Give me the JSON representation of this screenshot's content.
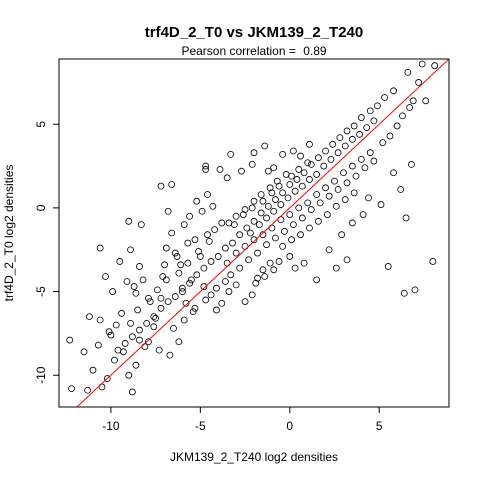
{
  "chart_data": {
    "type": "scatter",
    "title": "trf4D_2_T0 vs JKM139_2_T240",
    "subtitle_label": "Pearson correlation = ",
    "subtitle_value": "0.89",
    "xlabel": "JKM139_2_T240 log2 densities",
    "ylabel": "trf4D_2_T0 log2 densities",
    "xlim": [
      -12.9,
      8.9
    ],
    "ylim": [
      -11.9,
      8.9
    ],
    "xticks": [
      -10,
      -5,
      0,
      5
    ],
    "yticks": [
      -10,
      -5,
      0,
      5
    ],
    "marker": "open-circle",
    "point_color": "#000000",
    "fit_line": {
      "color": "#ff0000",
      "intercept": 0.0,
      "slope": 1.0
    },
    "grid": false,
    "points": [
      [
        -12.2,
        -10.8
      ],
      [
        -11.3,
        -10.9
      ],
      [
        -12.3,
        -7.9
      ],
      [
        -11.5,
        -8.6
      ],
      [
        -11.0,
        -9.7
      ],
      [
        -10.7,
        -8.2
      ],
      [
        -10.5,
        -10.7
      ],
      [
        -10.2,
        -10.2
      ],
      [
        -11.2,
        -6.5
      ],
      [
        -10.6,
        -6.7
      ],
      [
        -10.1,
        -7.4
      ],
      [
        -9.8,
        -9.1
      ],
      [
        -9.6,
        -8.5
      ],
      [
        -9.3,
        -8.6
      ],
      [
        -9.0,
        -10.0
      ],
      [
        -8.8,
        -11.0
      ],
      [
        -8.6,
        -9.4
      ],
      [
        -9.9,
        -5.0
      ],
      [
        -10.3,
        -4.1
      ],
      [
        -9.1,
        -4.4
      ],
      [
        -8.9,
        -6.9
      ],
      [
        -8.4,
        -7.9
      ],
      [
        -8.1,
        -8.3
      ],
      [
        -7.9,
        -8.0
      ],
      [
        -7.6,
        -7.1
      ],
      [
        -7.3,
        -8.5
      ],
      [
        -6.7,
        -8.8
      ],
      [
        -6.2,
        -8.0
      ],
      [
        -8.7,
        -4.7
      ],
      [
        -8.4,
        -3.5
      ],
      [
        -8.9,
        -2.5
      ],
      [
        -9.5,
        -3.2
      ],
      [
        -10.6,
        -2.4
      ],
      [
        -9.0,
        -0.8
      ],
      [
        -8.3,
        -1.0
      ],
      [
        -8.5,
        -6.1
      ],
      [
        -7.8,
        -5.6
      ],
      [
        -7.5,
        -6.6
      ],
      [
        -7.2,
        -5.4
      ],
      [
        -7.1,
        -4.1
      ],
      [
        -6.9,
        -2.4
      ],
      [
        -6.6,
        -1.5
      ],
      [
        -6.8,
        -0.2
      ],
      [
        -6.4,
        -2.7
      ],
      [
        -6.1,
        -3.4
      ],
      [
        -5.7,
        -2.1
      ],
      [
        -5.5,
        -4.3
      ],
      [
        -5.4,
        -6.2
      ],
      [
        -5.8,
        -5.7
      ],
      [
        -6.0,
        -5.0
      ],
      [
        -5.9,
        -1.0
      ],
      [
        -5.6,
        -0.5
      ],
      [
        -5.2,
        0.4
      ],
      [
        -4.9,
        -0.2
      ],
      [
        -4.6,
        0.8
      ],
      [
        -4.3,
        0.1
      ],
      [
        -5.0,
        -2.9
      ],
      [
        -4.8,
        -4.7
      ],
      [
        -4.4,
        -5.2
      ],
      [
        -4.1,
        -6.1
      ],
      [
        -3.8,
        -5.7
      ],
      [
        -3.4,
        -5.0
      ],
      [
        -3.0,
        -4.6
      ],
      [
        -7.2,
        1.3
      ],
      [
        -6.6,
        1.4
      ],
      [
        -4.7,
        2.5
      ],
      [
        -3.3,
        3.2
      ],
      [
        -4.7,
        2.3
      ],
      [
        -3.9,
        2.3
      ],
      [
        -3.5,
        1.8
      ],
      [
        -2.7,
        2.2
      ],
      [
        -2.1,
        2.6
      ],
      [
        -1.2,
        2.2
      ],
      [
        -0.9,
        2.4
      ],
      [
        -0.4,
        3.2
      ],
      [
        0.2,
        3.4
      ],
      [
        0.6,
        3.1
      ],
      [
        1.1,
        3.8
      ],
      [
        -1.4,
        3.7
      ],
      [
        -2.0,
        3.3
      ],
      [
        -2.5,
        -5.6
      ],
      [
        -2.1,
        -5.2
      ],
      [
        -1.8,
        -4.2
      ],
      [
        -1.5,
        -3.7
      ],
      [
        -1.1,
        -3.3
      ],
      [
        -0.6,
        -3.2
      ],
      [
        0.0,
        -2.9
      ],
      [
        0.3,
        -3.6
      ],
      [
        0.8,
        -3.3
      ],
      [
        1.5,
        -4.3
      ],
      [
        2.2,
        -2.5
      ],
      [
        2.6,
        -3.6
      ],
      [
        3.2,
        -3.1
      ],
      [
        2.9,
        -1.6
      ],
      [
        3.5,
        -0.9
      ],
      [
        4.1,
        -0.4
      ],
      [
        5.5,
        -3.5
      ],
      [
        7.0,
        -4.9
      ],
      [
        6.4,
        -5.1
      ],
      [
        8.0,
        -3.2
      ],
      [
        6.5,
        -0.6
      ],
      [
        6.2,
        1.1
      ],
      [
        6.8,
        2.6
      ],
      [
        4.4,
        0.6
      ],
      [
        5.1,
        0.2
      ],
      [
        5.8,
        2.1
      ],
      [
        6.9,
        6.4
      ],
      [
        7.2,
        7.5
      ],
      [
        7.6,
        6.4
      ],
      [
        8.1,
        8.5
      ],
      [
        7.4,
        8.6
      ],
      [
        6.6,
        8.1
      ],
      [
        5.8,
        7.0
      ],
      [
        5.3,
        6.6
      ],
      [
        4.9,
        6.1
      ],
      [
        4.5,
        5.8
      ],
      [
        4.0,
        5.4
      ],
      [
        3.6,
        4.9
      ],
      [
        3.2,
        4.6
      ],
      [
        2.8,
        4.2
      ],
      [
        2.4,
        3.8
      ],
      [
        2.0,
        3.4
      ],
      [
        1.6,
        3.0
      ],
      [
        1.2,
        2.6
      ],
      [
        0.8,
        2.1
      ],
      [
        0.4,
        1.7
      ],
      [
        0.0,
        1.4
      ],
      [
        -0.4,
        0.9
      ],
      [
        -0.8,
        0.5
      ],
      [
        -1.2,
        0.1
      ],
      [
        -1.6,
        -0.3
      ],
      [
        -2.0,
        -0.8
      ],
      [
        -2.4,
        -1.2
      ],
      [
        -2.8,
        -1.6
      ],
      [
        -3.2,
        -2.1
      ],
      [
        -3.6,
        -2.4
      ],
      [
        -4.0,
        -2.9
      ],
      [
        -4.4,
        -3.2
      ],
      [
        -4.8,
        -3.6
      ],
      [
        -5.2,
        -4.0
      ],
      [
        -5.6,
        -4.5
      ],
      [
        -6.0,
        -4.8
      ],
      [
        -6.4,
        -5.3
      ],
      [
        -6.8,
        -5.6
      ],
      [
        -7.2,
        -6.0
      ],
      [
        -7.6,
        -6.5
      ],
      [
        -8.0,
        -6.9
      ],
      [
        -8.4,
        -7.3
      ],
      [
        -8.8,
        -7.7
      ],
      [
        -9.2,
        -8.1
      ],
      [
        -2.2,
        -1.5
      ],
      [
        -1.7,
        -1.0
      ],
      [
        -1.3,
        -0.6
      ],
      [
        -0.9,
        -0.2
      ],
      [
        -0.5,
        0.2
      ],
      [
        -0.1,
        0.6
      ],
      [
        0.3,
        1.0
      ],
      [
        0.7,
        1.3
      ],
      [
        1.1,
        1.7
      ],
      [
        1.5,
        2.0
      ],
      [
        1.9,
        2.5
      ],
      [
        2.3,
        2.9
      ],
      [
        2.7,
        3.3
      ],
      [
        3.1,
        3.7
      ],
      [
        3.5,
        4.1
      ],
      [
        3.9,
        4.4
      ],
      [
        4.3,
        4.8
      ],
      [
        4.7,
        5.2
      ],
      [
        -3.1,
        -1.0
      ],
      [
        -2.6,
        -0.4
      ],
      [
        -2.1,
        0.0
      ],
      [
        -1.5,
        0.4
      ],
      [
        -1.0,
        0.9
      ],
      [
        -0.6,
        1.3
      ],
      [
        0.1,
        1.9
      ],
      [
        0.5,
        2.3
      ],
      [
        1.0,
        2.7
      ],
      [
        -3.5,
        -3.3
      ],
      [
        -3.0,
        -2.7
      ],
      [
        -2.5,
        -2.3
      ],
      [
        -2.0,
        -1.9
      ],
      [
        -1.5,
        -1.6
      ],
      [
        -1.0,
        -1.2
      ],
      [
        -0.5,
        -0.7
      ],
      [
        0.0,
        -0.4
      ],
      [
        0.5,
        0.0
      ],
      [
        1.0,
        0.3
      ],
      [
        1.5,
        0.8
      ],
      [
        2.0,
        1.2
      ],
      [
        2.5,
        1.6
      ],
      [
        3.0,
        2.1
      ],
      [
        3.5,
        2.5
      ],
      [
        4.0,
        2.9
      ],
      [
        4.5,
        3.3
      ],
      [
        -4.2,
        -1.3
      ],
      [
        -3.8,
        -0.9
      ],
      [
        -4.5,
        -2.0
      ],
      [
        -5.1,
        -2.6
      ],
      [
        -5.7,
        -3.3
      ],
      [
        -6.2,
        -3.9
      ],
      [
        -6.9,
        -4.3
      ],
      [
        -7.4,
        -4.9
      ],
      [
        -7.9,
        -5.4
      ],
      [
        -3.3,
        -4.0
      ],
      [
        -2.8,
        -3.6
      ],
      [
        -2.3,
        -3.1
      ],
      [
        -1.8,
        -2.7
      ],
      [
        -1.3,
        -2.2
      ],
      [
        -0.8,
        -1.8
      ],
      [
        -0.3,
        -1.4
      ],
      [
        0.2,
        -1.0
      ],
      [
        0.7,
        -0.6
      ],
      [
        1.2,
        -0.1
      ],
      [
        1.7,
        0.3
      ],
      [
        2.2,
        0.7
      ],
      [
        2.7,
        1.1
      ],
      [
        3.2,
        1.5
      ],
      [
        3.7,
        1.9
      ],
      [
        4.2,
        2.4
      ],
      [
        4.7,
        2.8
      ],
      [
        5.2,
        3.9
      ],
      [
        5.6,
        4.3
      ],
      [
        6.0,
        4.9
      ],
      [
        6.3,
        5.5
      ],
      [
        6.7,
        6.0
      ],
      [
        -0.2,
        2.0
      ],
      [
        -0.7,
        1.6
      ],
      [
        -1.1,
        1.2
      ],
      [
        -1.6,
        0.8
      ],
      [
        -2.0,
        0.4
      ],
      [
        -2.5,
        -0.1
      ],
      [
        -3.0,
        -0.5
      ],
      [
        -3.4,
        -0.9
      ],
      [
        0.6,
        -1.6
      ],
      [
        1.1,
        -1.2
      ],
      [
        1.6,
        -0.8
      ],
      [
        2.1,
        -0.4
      ],
      [
        2.6,
        0.1
      ],
      [
        3.1,
        0.5
      ],
      [
        3.6,
        0.9
      ],
      [
        -1.9,
        -4.5
      ],
      [
        -1.4,
        -4.1
      ],
      [
        -0.9,
        -3.7
      ],
      [
        -0.4,
        -2.3
      ],
      [
        0.1,
        -1.9
      ],
      [
        -4.6,
        -1.6
      ],
      [
        -5.3,
        -1.9
      ],
      [
        -6.3,
        -2.9
      ],
      [
        -7.0,
        -3.4
      ],
      [
        -8.2,
        -4.3
      ],
      [
        -8.6,
        -5.1
      ],
      [
        -9.4,
        -6.3
      ],
      [
        -9.7,
        -7.0
      ],
      [
        -10.0,
        -7.6
      ],
      [
        -6.5,
        -7.2
      ],
      [
        -5.9,
        -6.7
      ],
      [
        -5.3,
        -6.0
      ],
      [
        -4.7,
        -5.5
      ],
      [
        -4.1,
        -4.8
      ],
      [
        -3.6,
        -4.4
      ]
    ]
  }
}
